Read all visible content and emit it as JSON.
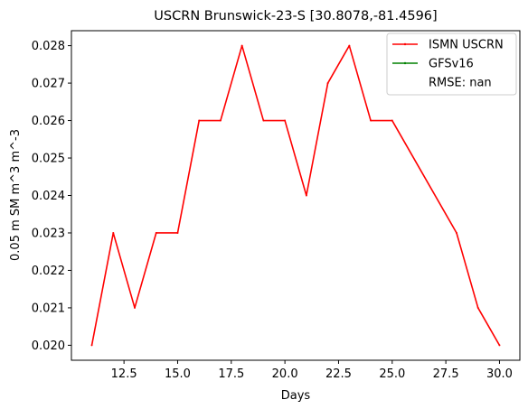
{
  "chart_data": {
    "type": "line",
    "title": "USCRN Brunswick-23-S [30.8078,-81.4596]",
    "xlabel": "Days",
    "ylabel": "0.05 m SM m^3 m^-3",
    "xlim": [
      10.05,
      30.95
    ],
    "ylim": [
      0.0196,
      0.0284
    ],
    "x_ticks": [
      12.5,
      15.0,
      17.5,
      20.0,
      22.5,
      25.0,
      27.5,
      30.0
    ],
    "x_tick_labels": [
      "12.5",
      "15.0",
      "17.5",
      "20.0",
      "22.5",
      "25.0",
      "27.5",
      "30.0"
    ],
    "y_ticks": [
      0.02,
      0.021,
      0.022,
      0.023,
      0.024,
      0.025,
      0.026,
      0.027,
      0.028
    ],
    "y_tick_labels": [
      "0.020",
      "0.021",
      "0.022",
      "0.023",
      "0.024",
      "0.025",
      "0.026",
      "0.027",
      "0.028"
    ],
    "grid": false,
    "legend_position": "top-right",
    "legend": [
      {
        "label": "ISMN USCRN",
        "color": "#ff0000",
        "marker": "line"
      },
      {
        "label": "GFSv16",
        "color": "#008000",
        "marker": "line"
      },
      {
        "label": "RMSE: nan",
        "color": "none",
        "marker": "none"
      }
    ],
    "series": [
      {
        "name": "ISMN USCRN",
        "color": "#ff0000",
        "x": [
          11,
          12,
          13,
          14,
          15,
          16,
          17,
          18,
          19,
          20,
          21,
          22,
          23,
          24,
          25,
          28,
          29,
          30
        ],
        "y": [
          0.02,
          0.023,
          0.021,
          0.023,
          0.023,
          0.026,
          0.026,
          0.028,
          0.026,
          0.026,
          0.024,
          0.027,
          0.028,
          0.026,
          0.026,
          0.023,
          0.021,
          0.02
        ]
      },
      {
        "name": "GFSv16",
        "color": "#008000",
        "x": [],
        "y": []
      }
    ]
  }
}
